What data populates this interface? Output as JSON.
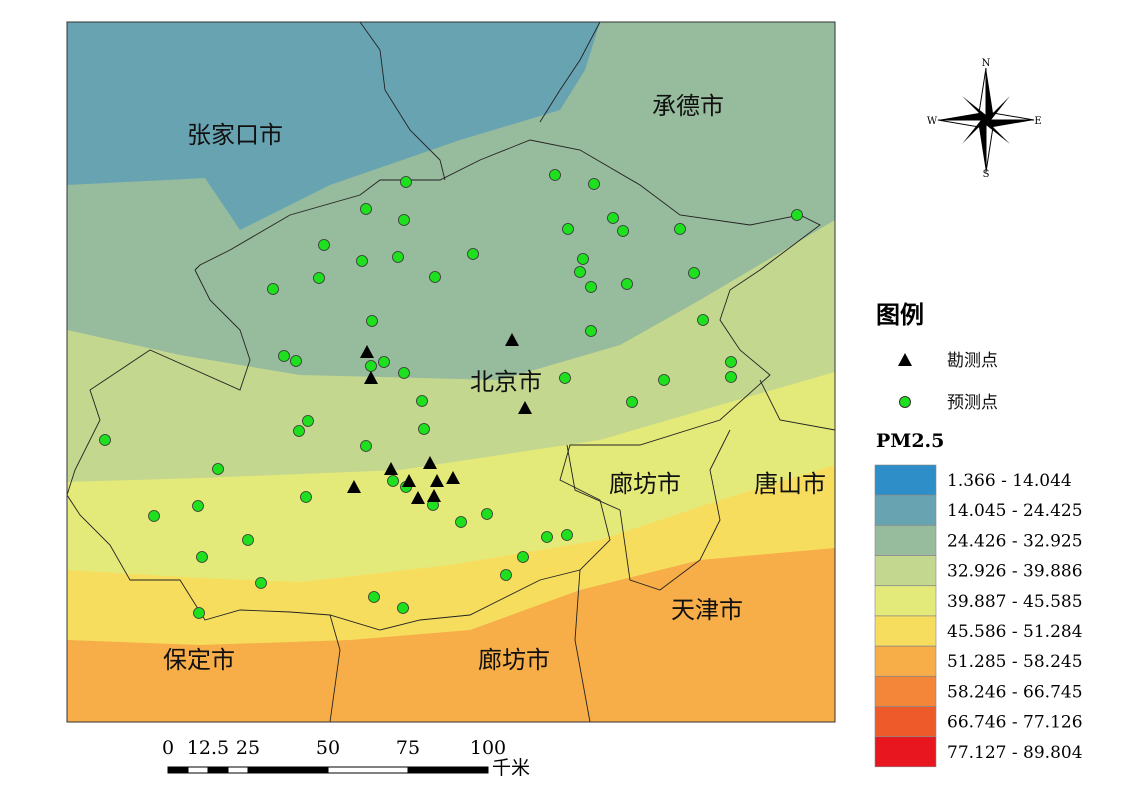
{
  "map": {
    "labels": [
      "张家口市",
      "承德市",
      "北京市",
      "廊坊市",
      "唐山市",
      "天津市",
      "保定市",
      "廊坊市"
    ]
  },
  "compass": {
    "n": "N",
    "s": "S",
    "e": "E",
    "w": "W"
  },
  "legend": {
    "title": "图例",
    "items": [
      "勘测点",
      "预测点"
    ],
    "pm_title": "PM2.5",
    "classes": [
      {
        "label": "1.366 - 14.044",
        "color": "#2e8fc8"
      },
      {
        "label": "14.045 - 24.425",
        "color": "#68a3b2"
      },
      {
        "label": "24.426 - 32.925",
        "color": "#97bb9d"
      },
      {
        "label": "32.926 - 39.886",
        "color": "#c4d78e"
      },
      {
        "label": "39.887 - 45.585",
        "color": "#e4ea79"
      },
      {
        "label": "45.586 - 51.284",
        "color": "#f7dd5e"
      },
      {
        "label": "51.285 - 58.245",
        "color": "#f7ae48"
      },
      {
        "label": "58.246 - 66.745",
        "color": "#f4863a"
      },
      {
        "label": "66.746 - 77.126",
        "color": "#ee5a2a"
      },
      {
        "label": "77.127 - 89.804",
        "color": "#e8161e"
      }
    ]
  },
  "scale_bar": {
    "ticks": [
      "0",
      "12.5",
      "25",
      "50",
      "75",
      "100"
    ],
    "unit": "千米"
  }
}
